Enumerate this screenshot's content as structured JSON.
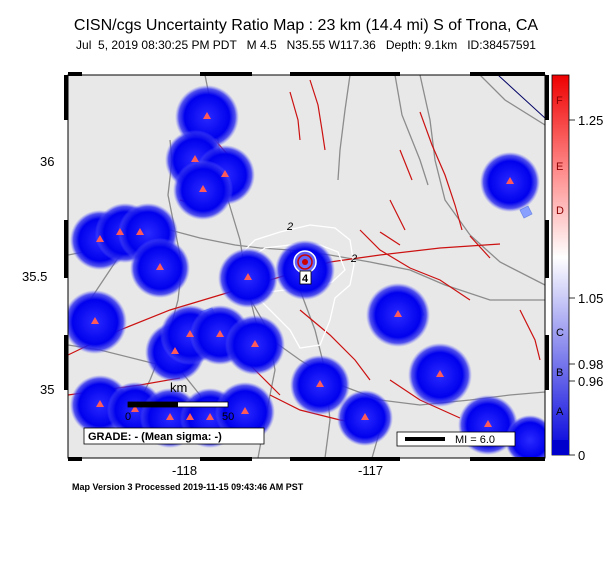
{
  "header": {
    "title": "CISN/cgs Uncertainty Ratio Map : 23 km (14.4 mi) S of Trona, CA",
    "date": "Jul  5, 2019 08:30:25 PM PDT",
    "magnitude": "M 4.5",
    "location": "N35.55 W117.36",
    "depth": "Depth: 9.1km",
    "event_id": "ID:38457591"
  },
  "map": {
    "lat_labels": [
      "36",
      "35.5",
      "35"
    ],
    "lon_labels": [
      "-118",
      "-117"
    ],
    "contour_labels": [
      "2",
      "2"
    ],
    "epicenter_label": "4",
    "scale_bar": {
      "title": "km",
      "ticks": [
        "0",
        "50"
      ]
    },
    "grade_box": "GRADE: - (Mean sigma: -)",
    "mi_legend": "MI = 6.0",
    "colors": {
      "land": "#e8e8e8",
      "station_halo": "#0000ee",
      "station": "#ff5a5a",
      "fault": "#cc0000",
      "road": "#888888",
      "water": "#8aa0ff"
    }
  },
  "colorbar": {
    "letters": [
      "F",
      "E",
      "D",
      "C",
      "B",
      "A"
    ],
    "values": [
      "1.25",
      "1.05",
      "0.98",
      "0.96",
      "0"
    ]
  },
  "footer": {
    "text": "Map Version 3 Processed 2019-11-15 09:43:46 AM PST"
  }
}
